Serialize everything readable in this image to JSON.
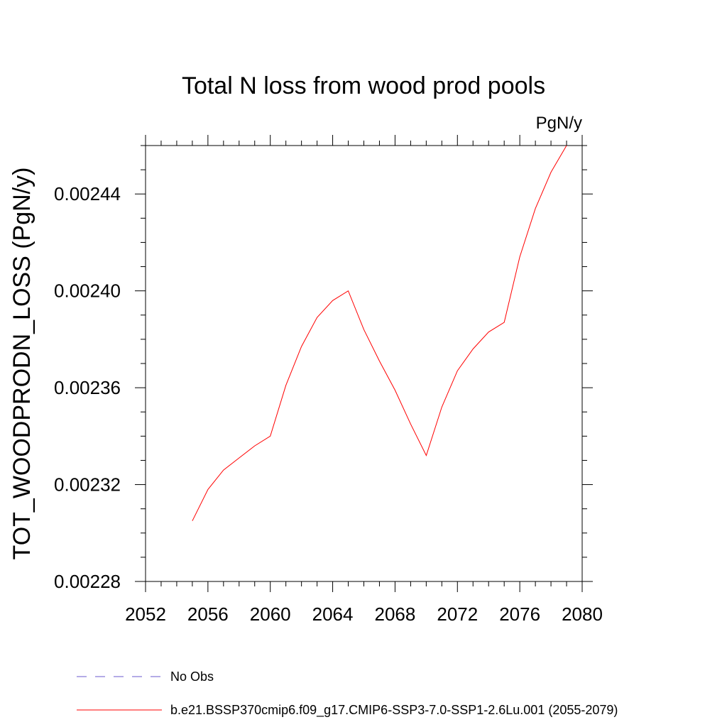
{
  "chart_data": {
    "type": "line",
    "title": "Total N loss from wood prod pools",
    "units_label": "PgN/y",
    "ylabel": "TOT_WOODPRODN_LOSS  (PgN/y)",
    "xlabel": "",
    "xlim": [
      2052,
      2080
    ],
    "ylim": [
      0.00228,
      0.00246
    ],
    "x_ticks": [
      "2052",
      "2056",
      "2060",
      "2064",
      "2068",
      "2072",
      "2076",
      "2080"
    ],
    "y_ticks": [
      "0.00228",
      "0.00232",
      "0.00236",
      "0.00240",
      "0.00244"
    ],
    "grid": false,
    "legend_position": "bottom",
    "series": [
      {
        "name": "b.e21.BSSP370cmip6.f09_g17.CMIP6-SSP3-7.0-SSP1-2.6Lu.001 (2055-2079)",
        "color": "#ff0000",
        "style": "solid",
        "x": [
          2055,
          2056,
          2057,
          2058,
          2059,
          2060,
          2061,
          2062,
          2063,
          2064,
          2065,
          2066,
          2067,
          2068,
          2069,
          2070,
          2071,
          2072,
          2073,
          2074,
          2075,
          2076,
          2077,
          2078,
          2079
        ],
        "y": [
          0.002305,
          0.002318,
          0.002326,
          0.002331,
          0.002336,
          0.00234,
          0.002361,
          0.002377,
          0.002389,
          0.002396,
          0.0024,
          0.002384,
          0.002371,
          0.002359,
          0.002345,
          0.002332,
          0.002352,
          0.002367,
          0.002376,
          0.002383,
          0.002387,
          0.002414,
          0.002434,
          0.002449,
          0.00246
        ]
      }
    ],
    "legend": [
      {
        "label": "No Obs",
        "color": "#6a5acd",
        "style": "dashed"
      },
      {
        "label": "b.e21.BSSP370cmip6.f09_g17.CMIP6-SSP3-7.0-SSP1-2.6Lu.001 (2055-2079)",
        "color": "#ff0000",
        "style": "solid"
      }
    ]
  }
}
